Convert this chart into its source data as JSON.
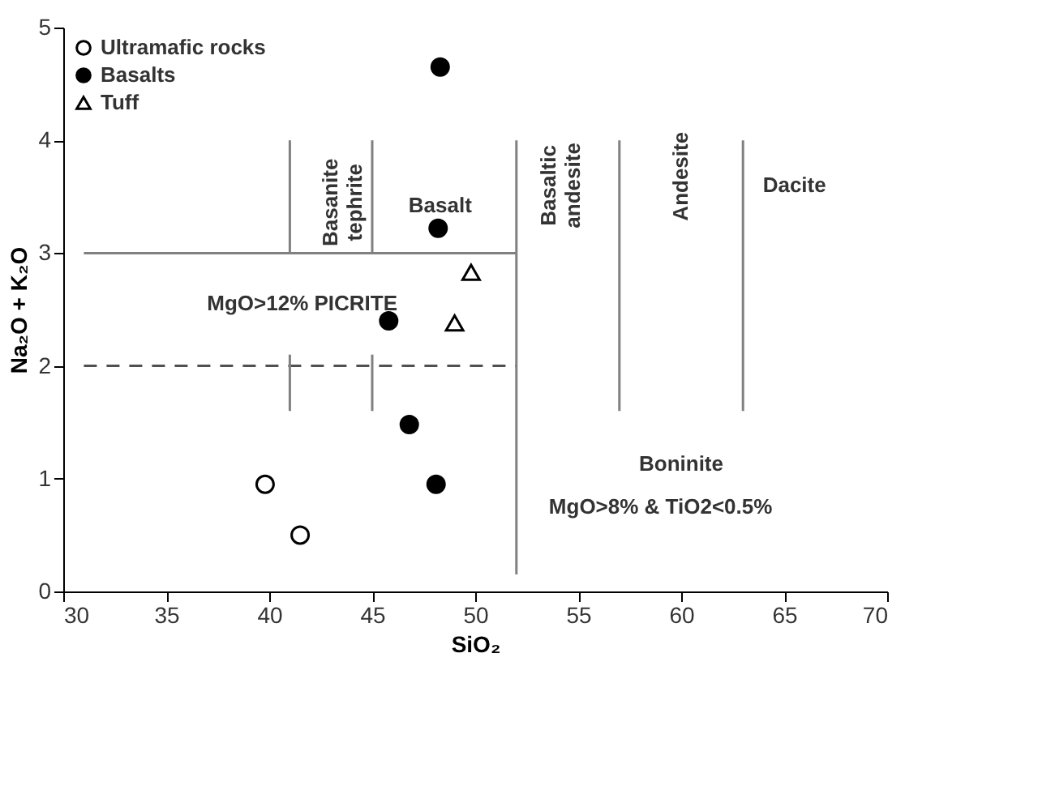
{
  "chart_data": {
    "type": "scatter",
    "xlabel": "SiO₂",
    "ylabel": "Na₂O + K₂O",
    "xlim": [
      30,
      70
    ],
    "xticks": [
      30,
      35,
      40,
      45,
      50,
      55,
      60,
      65,
      70
    ],
    "ylim": [
      0,
      5
    ],
    "yticks": [
      0,
      1,
      2,
      3,
      4,
      5
    ],
    "grid": false,
    "legend": "top left",
    "series": [
      {
        "name": "Ultramafic rocks",
        "color": "#ffffff",
        "marker": "circle",
        "x": [
          39.8,
          41.5
        ],
        "values": [
          0.95,
          0.5
        ]
      },
      {
        "name": "Basalts",
        "color": "#000000",
        "marker": "circle",
        "x": [
          48.3,
          48.2,
          45.8,
          46.8,
          48.1
        ],
        "values": [
          4.65,
          3.22,
          2.4,
          1.48,
          0.95
        ]
      },
      {
        "name": "Tuff",
        "color": "#ffffff",
        "marker": "triangle",
        "x": [
          49.8,
          49.0
        ],
        "values": [
          2.83,
          2.38
        ]
      },
      {
        "type": "line",
        "color": "#808080",
        "line_style": "solid",
        "x": [
          31,
          52
        ],
        "values": [
          3,
          3
        ]
      },
      {
        "type": "line",
        "color": "#505050",
        "line_style": "dashed",
        "x": [
          31,
          52
        ],
        "values": [
          2,
          2
        ]
      },
      {
        "type": "line",
        "color": "#808080",
        "line_style": "solid",
        "x": [
          52,
          52
        ],
        "values": [
          0.15,
          4
        ]
      },
      {
        "type": "line",
        "color": "#808080",
        "line_style": "solid",
        "x": [
          41,
          41
        ],
        "values": [
          3,
          4
        ]
      },
      {
        "type": "line",
        "color": "#808080",
        "line_style": "solid",
        "x": [
          45,
          45
        ],
        "values": [
          3,
          4
        ]
      },
      {
        "type": "line",
        "color": "#808080",
        "line_style": "solid",
        "x": [
          41,
          41
        ],
        "values": [
          1.6,
          2.1
        ]
      },
      {
        "type": "line",
        "color": "#808080",
        "line_style": "solid",
        "x": [
          45,
          45
        ],
        "values": [
          1.6,
          2.1
        ]
      },
      {
        "type": "line",
        "color": "#808080",
        "line_style": "solid",
        "x": [
          57,
          57
        ],
        "values": [
          1.6,
          4
        ]
      },
      {
        "type": "line",
        "color": "#808080",
        "line_style": "solid",
        "x": [
          63,
          63
        ],
        "values": [
          1.6,
          4
        ]
      }
    ],
    "annotations": [
      "Basanite\ntephrite",
      "Basalt",
      "Basaltic\nandesite",
      "Andesite",
      "Dacite",
      "MgO>12% PICRITE",
      "Boninite",
      "MgO>8% & TiO2<0.5%"
    ]
  }
}
